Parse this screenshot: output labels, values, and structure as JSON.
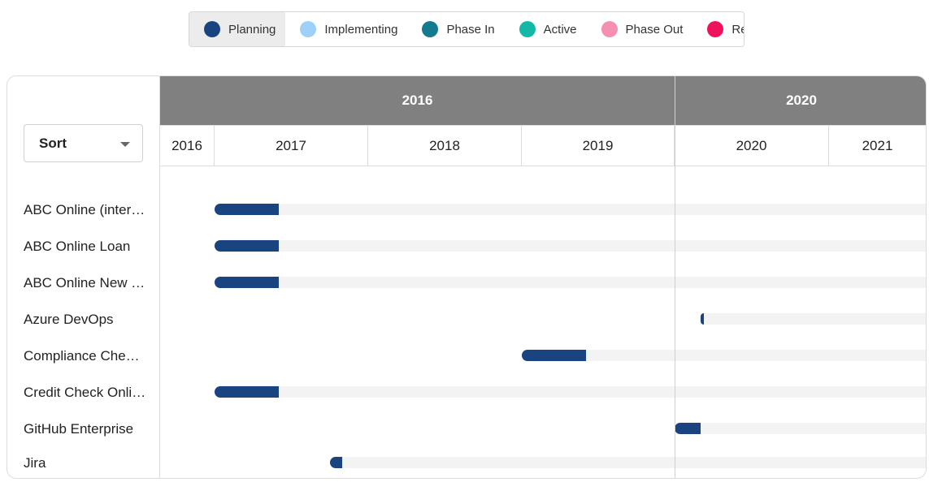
{
  "legend": [
    {
      "label": "Planning",
      "color": "#1a4480",
      "active": true
    },
    {
      "label": "Implementing",
      "color": "#9fd0f7",
      "active": false
    },
    {
      "label": "Phase In",
      "color": "#137a8f",
      "active": false
    },
    {
      "label": "Active",
      "color": "#14b8a6",
      "active": false
    },
    {
      "label": "Phase Out",
      "color": "#f590b4",
      "active": false
    },
    {
      "label": "Retired",
      "color": "#f0115c",
      "active": false
    }
  ],
  "sort": {
    "label": "Sort"
  },
  "header_groups": [
    "2016",
    "2020"
  ],
  "years": [
    "2016",
    "2017",
    "2018",
    "2019",
    "2020",
    "2021"
  ],
  "chart_data": {
    "type": "bar",
    "x_unit": "year",
    "categories": [
      "ABC Online (inter…",
      "ABC Online Loan",
      "ABC Online New …",
      "Azure DevOps",
      "Compliance Che…",
      "Credit Check Onli…",
      "GitHub Enterprise",
      "Jira"
    ],
    "series": [
      {
        "name": "Planning",
        "color": "#1a4480",
        "ranges": [
          [
            2017.0,
            2017.42
          ],
          [
            2017.0,
            2017.42
          ],
          [
            2017.0,
            2017.42
          ],
          [
            2020.17,
            2020.19
          ],
          [
            2019.0,
            2019.42
          ],
          [
            2017.0,
            2017.42
          ],
          [
            2020.0,
            2020.17
          ],
          [
            2017.75,
            2017.83
          ]
        ]
      }
    ]
  }
}
